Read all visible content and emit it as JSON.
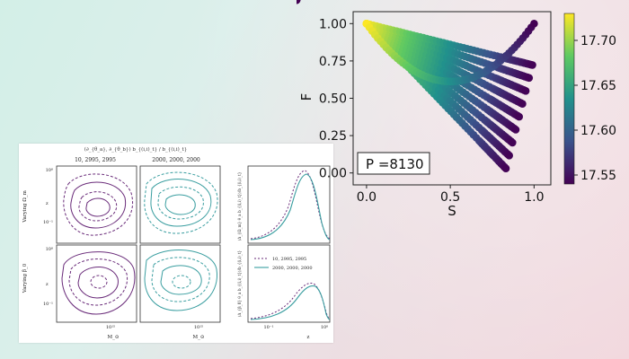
{
  "scatter_chart": {
    "xlabel": "S",
    "ylabel": "F",
    "x_ticks": [
      "0.0",
      "0.5",
      "1.0"
    ],
    "y_ticks": [
      "0.00",
      "0.25",
      "0.50",
      "0.75",
      "1.00"
    ],
    "xlim": [
      -0.08,
      1.1
    ],
    "ylim": [
      -0.08,
      1.08
    ],
    "annotation": "P =8130",
    "colorbar_ticks": [
      "17.70",
      "17.65",
      "17.60",
      "17.55"
    ],
    "colorbar_range": [
      17.54,
      17.73
    ],
    "colormap": [
      "#440154",
      "#3b528b",
      "#21918c",
      "#5ec962",
      "#fde725"
    ]
  },
  "paper_figure": {
    "top_title": "(∂_{θ_a}, ∂_{θ_b}) b_{(i,i)_t} / b_{(i,i)_t}",
    "col1_title": "10, 2995, 2995",
    "col2_title": "2000, 2000, 2000",
    "row1_label": "Varying Ω_m",
    "row2_label": "Varying β_0",
    "contour_ytick_top": "10⁰",
    "contour_ytick_mid": "10⁻¹",
    "contour_xtick": "10¹⁵",
    "contour_ylabel": "z",
    "contour_xlabel": "M_⊙",
    "line_xtick_1": "10⁻¹",
    "line_xtick_2": "10⁰",
    "line_xlabel": "z",
    "line_ylabel_top": "⟨Δ_{Ω_m} θ_a b_{(i,i)_t}⟩/b_{(i,i)_t}",
    "line_ylabel_bottom": "⟨Δ_{β_0} θ_a b_{(i,i)_t}⟩/b_{(i,i)_t}",
    "legend_1": "10, 2995, 2995",
    "legend_2": "2000, 2000, 2000",
    "colors": {
      "purple": "#6a2c7a",
      "teal": "#3a9ea0"
    }
  }
}
